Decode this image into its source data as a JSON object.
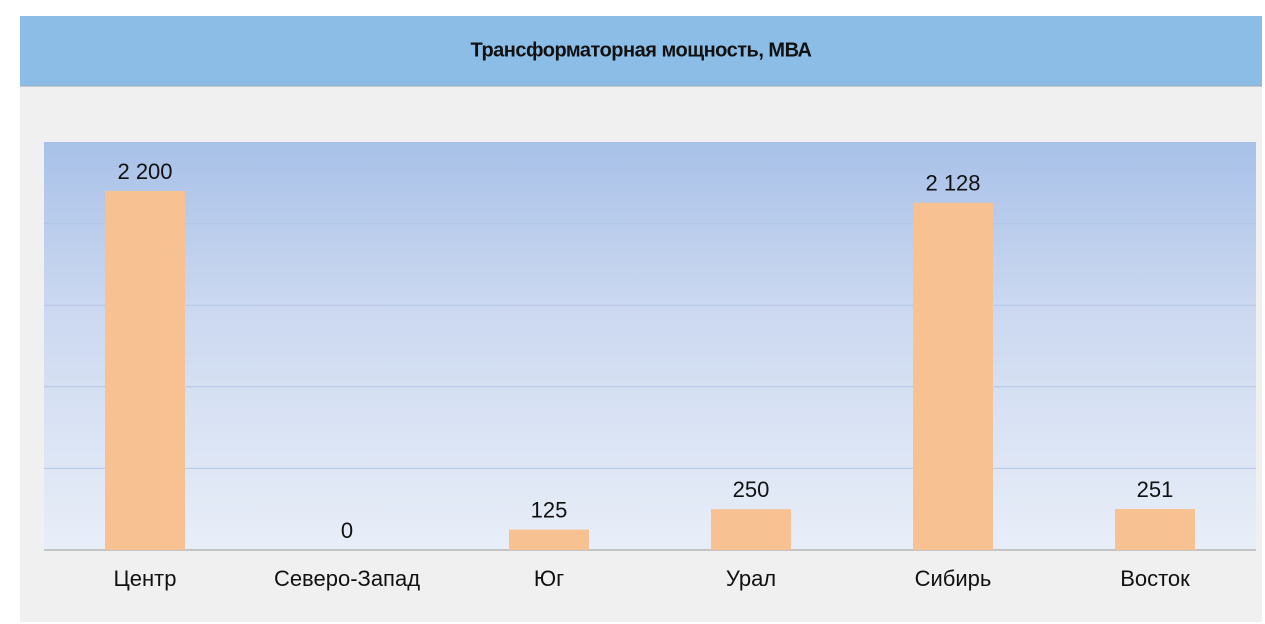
{
  "chart_data": {
    "type": "bar",
    "title": "Трансформаторная мощность, МВА",
    "categories": [
      "Центр",
      "Северо-Запад",
      "Юг",
      "Урал",
      "Сибирь",
      "Восток"
    ],
    "values": [
      2200,
      0,
      125,
      250,
      2128,
      251
    ],
    "value_labels": [
      "2 200",
      "0",
      "125",
      "250",
      "2 128",
      "251"
    ],
    "color": "#f8c191",
    "ylim": [
      0,
      2500
    ],
    "yticks": [
      0,
      500,
      1000,
      1500,
      2000,
      2500
    ],
    "grid": true
  }
}
